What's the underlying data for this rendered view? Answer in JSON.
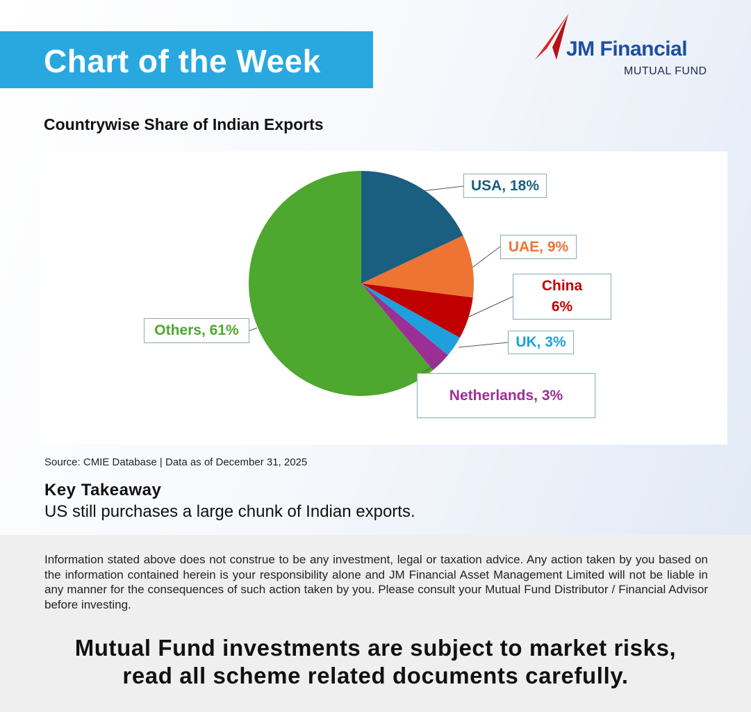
{
  "header": {
    "title": "Chart of the Week"
  },
  "logo": {
    "name": "JM Financial",
    "tagline": "MUTUAL FUND"
  },
  "chart_data": {
    "type": "pie",
    "title": "Countrywise Share of Indian Exports",
    "values": [
      18,
      9,
      6,
      3,
      3,
      61
    ],
    "value_labels": [
      "USA, 18%",
      "UAE, 9%",
      "China\n6%",
      "UK, 3%",
      "Netherlands, 3%",
      "Others, 61%"
    ],
    "colors": [
      "#1a5e80",
      "#ed7433",
      "#c00000",
      "#1fa0dc",
      "#9b2f96",
      "#4ea72e"
    ]
  },
  "source": "Source: CMIE Database | Data as of December 31, 2025",
  "takeaway": {
    "heading": "Key Takeaway",
    "text": "US still purchases a large chunk of Indian exports."
  },
  "disclaimer": "Information stated above does not construe to be any investment, legal or taxation advice. Any action taken by you based on the information contained herein is your responsibility alone and JM Financial Asset Management Limited will not be liable in any manner for the consequences of such action taken by you. Please consult your Mutual Fund Distributor / Financial Advisor before investing.",
  "warning": [
    "Mutual Fund investments are subject to market risks,",
    "read all scheme related documents carefully."
  ]
}
